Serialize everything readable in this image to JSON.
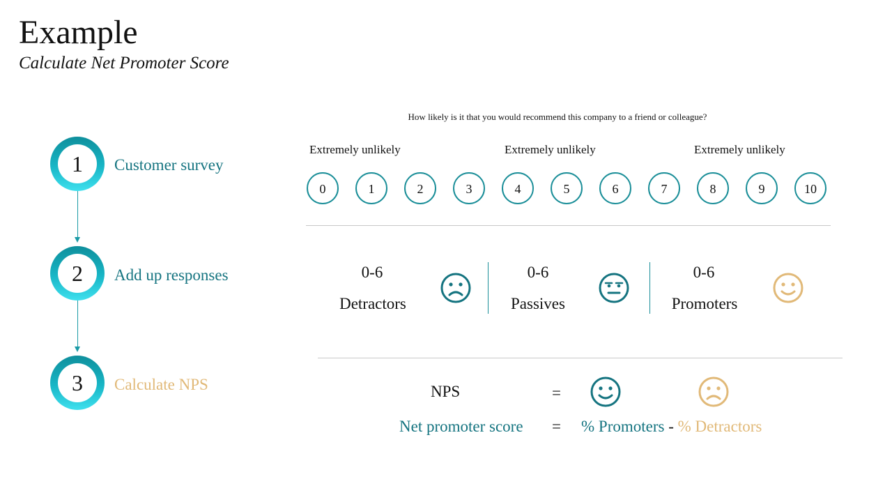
{
  "header": {
    "title": "Example",
    "subtitle": "Calculate Net Promoter Score"
  },
  "steps": [
    {
      "number": "1",
      "label": "Customer survey"
    },
    {
      "number": "2",
      "label": "Add up responses"
    },
    {
      "number": "3",
      "label": "Calculate NPS"
    }
  ],
  "survey": {
    "question": "How likely is it that you would recommend this company to a friend or colleague?",
    "scale_labels": [
      "Extremely unlikely",
      "Extremely unlikely",
      "Extremely unlikely"
    ],
    "scale": [
      "0",
      "1",
      "2",
      "3",
      "4",
      "5",
      "6",
      "7",
      "8",
      "9",
      "10"
    ]
  },
  "categories": [
    {
      "range": "0-6",
      "name": "Detractors",
      "face": "sad-face-icon"
    },
    {
      "range": "0-6",
      "name": "Passives",
      "face": "neutral-face-icon"
    },
    {
      "range": "0-6",
      "name": "Promoters",
      "face": "happy-face-icon"
    }
  ],
  "formula": {
    "nps_label": "NPS",
    "equals": "=",
    "full_label": "Net promoter score",
    "promoters": "% Promoters",
    "minus": "-",
    "detractors": "% Detractors"
  },
  "colors": {
    "teal": "#157480",
    "gold": "#e1b978",
    "ring": "#18b6c6"
  }
}
